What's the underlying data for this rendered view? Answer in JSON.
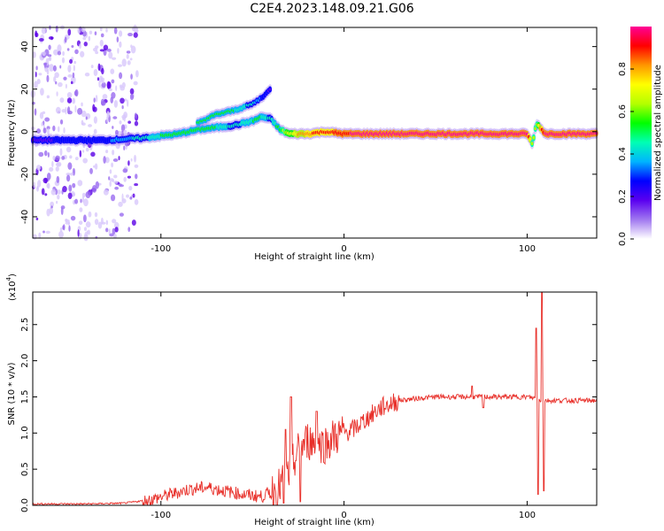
{
  "title": "C2E4.2023.148.09.21.G06",
  "chart_data": [
    {
      "type": "heatmap",
      "xlabel": "Height of straight line (km)",
      "ylabel": "Frequency (Hz)",
      "xlim": [
        -170,
        138
      ],
      "ylim": [
        -50,
        49
      ],
      "xticks": [
        -100,
        0,
        100
      ],
      "yticks": [
        -40,
        -20,
        0,
        20,
        40
      ],
      "colorbar": {
        "label": "Normalized spectral amplitude",
        "range": [
          0,
          1
        ],
        "ticks": [
          "0.0",
          "0.2",
          "0.4",
          "0.6",
          "0.8"
        ],
        "colors": [
          "#ffffff",
          "#a078f0",
          "#5a00f0",
          "#0000ff",
          "#00b4ff",
          "#00ffb4",
          "#00ff00",
          "#b4ff00",
          "#ffff00",
          "#ff9600",
          "#ff0000",
          "#ff0096"
        ]
      },
      "main_ridge": {
        "x": [
          -170,
          -150,
          -130,
          -110,
          -100,
          -90,
          -80,
          -70,
          -60,
          -50,
          -45,
          -40,
          -35,
          -30,
          -20,
          -10,
          0,
          20,
          50,
          80,
          100,
          103,
          105,
          108,
          110,
          120,
          138
        ],
        "y": [
          -4,
          -4,
          -4,
          -3,
          -2,
          -1,
          1,
          2,
          3,
          5,
          7,
          6,
          1,
          -1,
          -1,
          0,
          -1,
          -1,
          -1,
          -1,
          -1,
          -6,
          4,
          1,
          -1,
          -1,
          -1
        ],
        "peak_amplitude": [
          0.2,
          0.25,
          0.3,
          0.45,
          0.5,
          0.55,
          0.55,
          0.5,
          0.45,
          0.5,
          0.5,
          0.45,
          0.55,
          0.7,
          0.85,
          0.9,
          0.95,
          0.98,
          1.0,
          1.0,
          1.0,
          0.6,
          0.6,
          0.9,
          1.0,
          1.0,
          1.0
        ]
      },
      "second_ridge": {
        "x": [
          -80,
          -70,
          -60,
          -50,
          -45,
          -40
        ],
        "y": [
          4,
          8,
          10,
          13,
          16,
          20
        ],
        "peak_amplitude": [
          0.5,
          0.55,
          0.5,
          0.45,
          0.3,
          0.2
        ]
      },
      "noise_region_x": [
        -170,
        -125
      ]
    },
    {
      "type": "line",
      "xlabel": "Height of straight line (km)",
      "ylabel": "SNR (10 * v/v)",
      "y_multiplier": "(x10",
      "y_multiplier_exp": "4",
      "y_multiplier_close": ")",
      "xlim": [
        -170,
        138
      ],
      "ylim": [
        0,
        2.95
      ],
      "xticks": [
        -100,
        0,
        100
      ],
      "yticks": [
        0.0,
        0.5,
        1.0,
        1.5,
        2.0,
        2.5
      ],
      "color": "#e8302a",
      "envelope": {
        "x": [
          -170,
          -140,
          -120,
          -105,
          -95,
          -85,
          -75,
          -65,
          -55,
          -45,
          -35,
          -30,
          -25,
          -20,
          -15,
          -10,
          -5,
          0,
          5,
          10,
          15,
          20,
          30,
          40,
          50,
          60,
          70,
          80,
          90,
          100,
          105,
          108,
          110,
          112,
          120,
          130,
          138
        ],
        "y": [
          0.02,
          0.02,
          0.03,
          0.08,
          0.15,
          0.22,
          0.25,
          0.2,
          0.15,
          0.12,
          0.25,
          0.45,
          0.75,
          0.9,
          0.85,
          0.85,
          0.95,
          1.0,
          1.05,
          1.15,
          1.25,
          1.35,
          1.45,
          1.48,
          1.5,
          1.5,
          1.5,
          1.5,
          1.5,
          1.5,
          1.48,
          1.45,
          1.45,
          1.45,
          1.45,
          1.45,
          1.45
        ]
      },
      "spikes": [
        {
          "x": -29,
          "y": 1.5
        },
        {
          "x": -32,
          "y": 1.05
        },
        {
          "x": -33,
          "y": 0.03
        },
        {
          "x": -24,
          "y": 0.05
        },
        {
          "x": -15,
          "y": 1.3
        },
        {
          "x": 70,
          "y": 1.65
        },
        {
          "x": 76,
          "y": 1.35
        },
        {
          "x": 105,
          "y": 2.45
        },
        {
          "x": 106,
          "y": 0.15
        },
        {
          "x": 108,
          "y": 2.95
        },
        {
          "x": 109,
          "y": 0.2
        }
      ]
    }
  ]
}
